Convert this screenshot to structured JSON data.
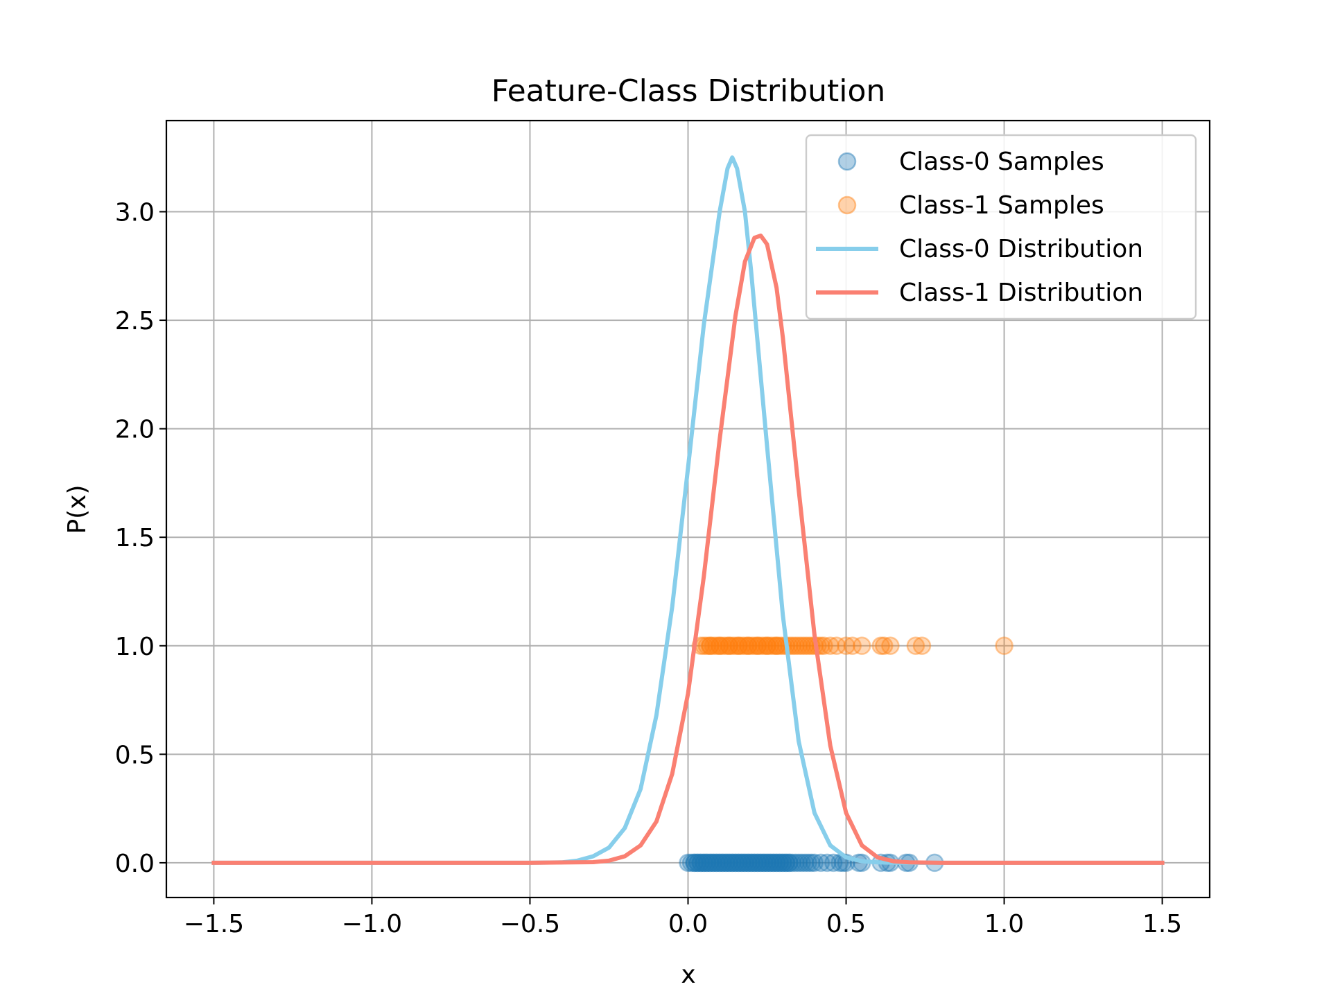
{
  "chart_data": {
    "type": "scatter",
    "title": "Feature-Class Distribution",
    "xlabel": "x",
    "ylabel": "P(x)",
    "xlim": [
      -1.65,
      1.65
    ],
    "ylim": [
      -0.16,
      3.42
    ],
    "x_ticks": [
      -1.5,
      -1.0,
      -0.5,
      0.0,
      0.5,
      1.0,
      1.5
    ],
    "y_ticks": [
      0.0,
      0.5,
      1.0,
      1.5,
      2.0,
      2.5,
      3.0
    ],
    "x_tick_labels": [
      "−1.5",
      "−1.0",
      "−0.5",
      "0.0",
      "0.5",
      "1.0",
      "1.5"
    ],
    "y_tick_labels": [
      "0.0",
      "0.5",
      "1.0",
      "1.5",
      "2.0",
      "2.5",
      "3.0"
    ],
    "grid": true,
    "legend_position": "top-right",
    "legend": [
      {
        "label": "Class-0 Samples",
        "kind": "marker",
        "color": "#1f77b4"
      },
      {
        "label": "Class-1 Samples",
        "kind": "marker",
        "color": "#ff7f0e"
      },
      {
        "label": "Class-0 Distribution",
        "kind": "line",
        "color": "#87ceeb"
      },
      {
        "label": "Class-1 Distribution",
        "kind": "line",
        "color": "#fa8072"
      }
    ],
    "scatter_series": [
      {
        "color": "#1f77b4",
        "y": 0.0,
        "x": [
          0.0,
          0.01,
          0.02,
          0.02,
          0.03,
          0.03,
          0.04,
          0.04,
          0.05,
          0.05,
          0.06,
          0.06,
          0.07,
          0.07,
          0.08,
          0.08,
          0.09,
          0.09,
          0.1,
          0.1,
          0.11,
          0.11,
          0.12,
          0.12,
          0.13,
          0.13,
          0.14,
          0.14,
          0.15,
          0.15,
          0.16,
          0.16,
          0.17,
          0.17,
          0.18,
          0.18,
          0.19,
          0.19,
          0.2,
          0.2,
          0.21,
          0.21,
          0.22,
          0.22,
          0.23,
          0.23,
          0.24,
          0.24,
          0.25,
          0.25,
          0.26,
          0.26,
          0.27,
          0.27,
          0.28,
          0.28,
          0.29,
          0.29,
          0.3,
          0.3,
          0.31,
          0.31,
          0.32,
          0.32,
          0.33,
          0.34,
          0.35,
          0.36,
          0.37,
          0.38,
          0.39,
          0.4,
          0.42,
          0.44,
          0.46,
          0.48,
          0.49,
          0.5,
          0.54,
          0.55,
          0.61,
          0.63,
          0.64,
          0.69,
          0.7,
          0.78
        ]
      },
      {
        "color": "#ff7f0e",
        "y": 1.0,
        "x": [
          0.04,
          0.05,
          0.06,
          0.07,
          0.07,
          0.08,
          0.09,
          0.1,
          0.1,
          0.11,
          0.12,
          0.13,
          0.13,
          0.14,
          0.15,
          0.16,
          0.16,
          0.17,
          0.18,
          0.19,
          0.19,
          0.2,
          0.21,
          0.22,
          0.22,
          0.23,
          0.24,
          0.25,
          0.25,
          0.26,
          0.27,
          0.28,
          0.28,
          0.29,
          0.3,
          0.31,
          0.32,
          0.33,
          0.34,
          0.35,
          0.36,
          0.37,
          0.38,
          0.39,
          0.4,
          0.41,
          0.42,
          0.43,
          0.45,
          0.47,
          0.5,
          0.52,
          0.55,
          0.61,
          0.62,
          0.64,
          0.72,
          0.74,
          1.0
        ]
      }
    ],
    "line_series": [
      {
        "color": "#87ceeb",
        "x": [
          -1.5,
          -0.5,
          -0.4,
          -0.35,
          -0.3,
          -0.25,
          -0.2,
          -0.15,
          -0.1,
          -0.05,
          0.0,
          0.05,
          0.1,
          0.125,
          0.14,
          0.155,
          0.18,
          0.2,
          0.25,
          0.3,
          0.35,
          0.4,
          0.45,
          0.5,
          0.55,
          0.6,
          0.65,
          0.7,
          1.5
        ],
        "y": [
          0.0,
          0.0,
          0.002,
          0.01,
          0.03,
          0.07,
          0.16,
          0.34,
          0.68,
          1.18,
          1.82,
          2.48,
          3.0,
          3.2,
          3.25,
          3.2,
          3.0,
          2.72,
          1.92,
          1.14,
          0.56,
          0.23,
          0.08,
          0.025,
          0.007,
          0.002,
          0.0005,
          0.0,
          0.0
        ]
      },
      {
        "color": "#fa8072",
        "x": [
          -1.5,
          -0.5,
          -0.3,
          -0.25,
          -0.2,
          -0.15,
          -0.1,
          -0.05,
          0.0,
          0.05,
          0.1,
          0.15,
          0.18,
          0.21,
          0.23,
          0.25,
          0.28,
          0.3,
          0.35,
          0.4,
          0.45,
          0.5,
          0.55,
          0.6,
          0.65,
          0.7,
          0.8,
          1.5
        ],
        "y": [
          0.0,
          0.0,
          0.003,
          0.01,
          0.03,
          0.08,
          0.19,
          0.41,
          0.78,
          1.32,
          1.95,
          2.52,
          2.77,
          2.88,
          2.89,
          2.85,
          2.65,
          2.42,
          1.72,
          1.05,
          0.54,
          0.23,
          0.08,
          0.025,
          0.007,
          0.002,
          0.0,
          0.0
        ]
      }
    ]
  }
}
